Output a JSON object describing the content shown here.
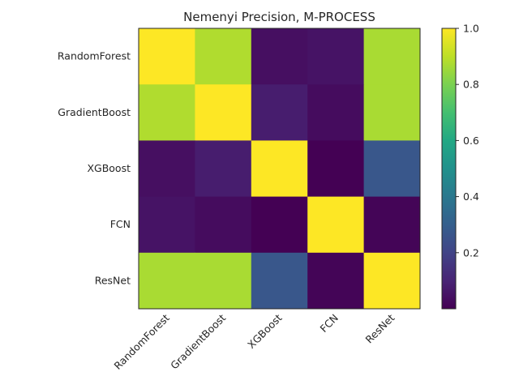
{
  "chart_data": {
    "type": "heatmap",
    "title": "Nemenyi Precision, M-PROCESS",
    "row_labels": [
      "RandomForest",
      "GradientBoost",
      "XGBoost",
      "FCN",
      "ResNet"
    ],
    "col_labels": [
      "RandomForest",
      "GradientBoost",
      "XGBoost",
      "FCN",
      "ResNet"
    ],
    "values": [
      [
        1.0,
        0.88,
        0.04,
        0.05,
        0.87
      ],
      [
        0.88,
        1.0,
        0.08,
        0.03,
        0.87
      ],
      [
        0.04,
        0.08,
        1.0,
        0.0,
        0.27
      ],
      [
        0.05,
        0.03,
        0.0,
        1.0,
        0.01
      ],
      [
        0.87,
        0.87,
        0.27,
        0.01,
        1.0
      ]
    ],
    "colorbar": {
      "min": 0.0,
      "max": 1.0,
      "ticks": [
        0.2,
        0.4,
        0.6,
        0.8,
        1.0
      ],
      "tick_labels": [
        "0.2",
        "0.4",
        "0.6",
        "0.8",
        "1.0"
      ],
      "colormap": "viridis"
    },
    "grid": false
  }
}
